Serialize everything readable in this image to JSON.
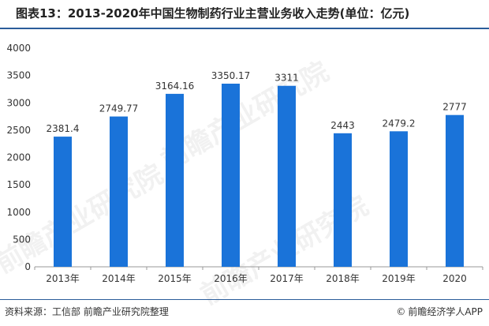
{
  "title": "图表13：2013-2020年中国生物制药行业主营业务收入走势(单位：亿元)",
  "footer": {
    "source": "资料来源：工信部 前瞻产业研究院整理",
    "brand": "前瞻经济学人APP",
    "brand_icon": "copyright-logo-icon"
  },
  "watermark": "前瞻产业研究院",
  "colors": {
    "bar": "#1a73d9",
    "axis": "#999999",
    "rule": "#2b5d9a"
  },
  "chart_data": {
    "type": "bar",
    "categories": [
      "2013年",
      "2014年",
      "2015年",
      "2016年",
      "2017年",
      "2018年",
      "2019年",
      "2020"
    ],
    "values": [
      2381.4,
      2749.77,
      3164.16,
      3350.17,
      3311,
      2443,
      2479.2,
      2777
    ],
    "value_labels": [
      "2381.4",
      "2749.77",
      "3164.16",
      "3350.17",
      "3311",
      "2443",
      "2479.2",
      "2777"
    ],
    "ylim": [
      0,
      4000
    ],
    "yticks": [
      0,
      500,
      1000,
      1500,
      2000,
      2500,
      3000,
      3500,
      4000
    ],
    "title": "",
    "xlabel": "",
    "ylabel": "",
    "grid": false,
    "legend": "none"
  }
}
